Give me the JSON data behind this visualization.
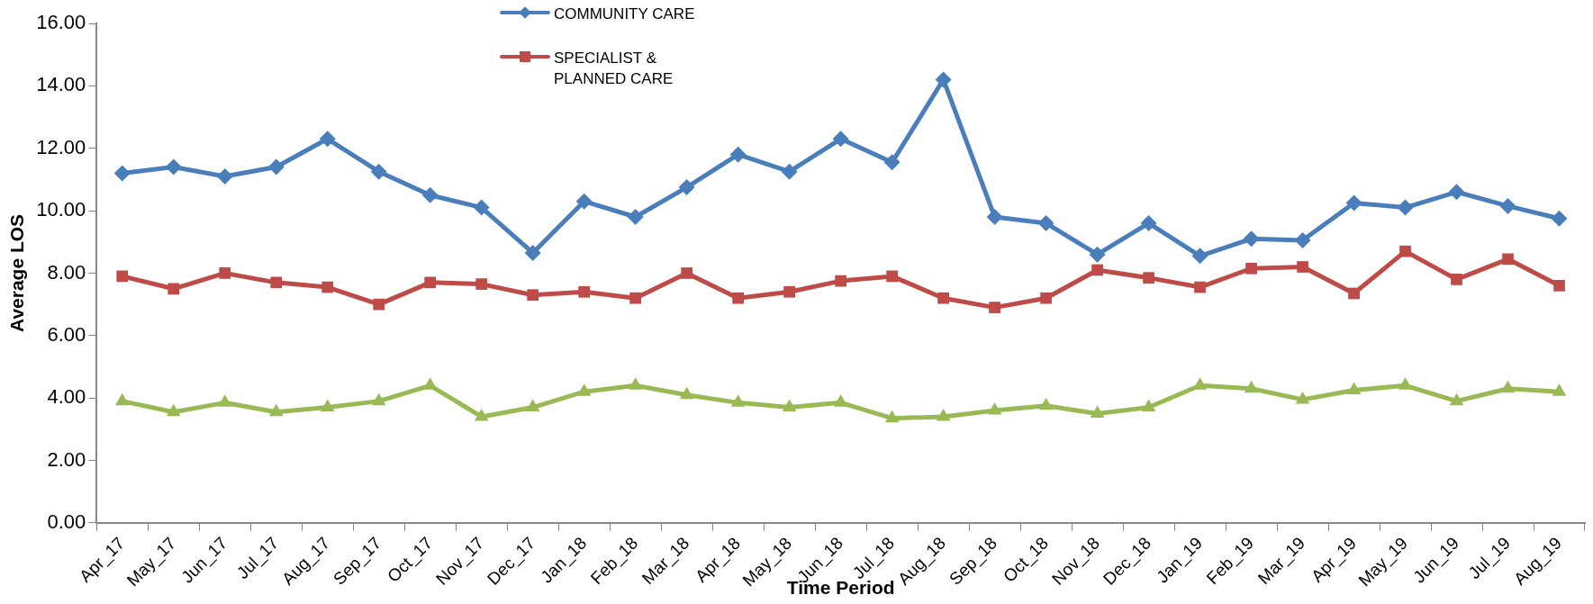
{
  "chart_data": {
    "type": "line",
    "xlabel": "Time Period",
    "ylabel": "Average LOS",
    "categories": [
      "Apr_17",
      "May_17",
      "Jun_17",
      "Jul_17",
      "Aug_17",
      "Sep_17",
      "Oct_17",
      "Nov_17",
      "Dec_17",
      "Jan_18",
      "Feb_18",
      "Mar_18",
      "Apr_18",
      "May_18",
      "Jun_18",
      "Jul_18",
      "Aug_18",
      "Sep_18",
      "Oct_18",
      "Nov_18",
      "Dec_18",
      "Jan_19",
      "Feb_19",
      "Mar_19",
      "Apr_19",
      "May_19",
      "Jun_19",
      "Jul_19",
      "Aug_19"
    ],
    "series": [
      {
        "name": "COMMUNITY CARE",
        "color": "#4a7ebb",
        "marker": "diamond",
        "values": [
          11.2,
          11.4,
          11.1,
          11.4,
          12.3,
          11.25,
          10.5,
          10.1,
          8.65,
          10.3,
          9.8,
          10.75,
          11.8,
          11.25,
          12.3,
          11.55,
          14.2,
          9.8,
          9.6,
          8.6,
          9.6,
          8.55,
          9.1,
          9.05,
          10.25,
          10.1,
          10.6,
          10.15,
          9.75
        ]
      },
      {
        "name": "SPECIALIST & PLANNED CARE",
        "color": "#be4b48",
        "marker": "square",
        "values": [
          7.9,
          7.5,
          8.0,
          7.7,
          7.55,
          7.0,
          7.7,
          7.65,
          7.3,
          7.4,
          7.2,
          8.0,
          7.2,
          7.4,
          7.75,
          7.9,
          7.2,
          6.9,
          7.2,
          8.1,
          7.85,
          7.55,
          8.15,
          8.2,
          7.35,
          8.7,
          7.8,
          8.45,
          7.6
        ]
      },
      {
        "color": "#98b954",
        "marker": "triangle",
        "values": [
          3.9,
          3.55,
          3.85,
          3.55,
          3.7,
          3.9,
          4.4,
          3.4,
          3.7,
          4.2,
          4.4,
          4.1,
          3.85,
          3.7,
          3.85,
          3.35,
          3.4,
          3.6,
          3.75,
          3.5,
          3.7,
          4.4,
          4.3,
          3.95,
          4.25,
          4.4,
          3.9,
          4.3,
          4.2
        ]
      }
    ],
    "ylim": [
      0,
      16
    ],
    "yticks": [
      {
        "value": 0,
        "label": "0.00"
      },
      {
        "value": 2,
        "label": "2.00"
      },
      {
        "value": 4,
        "label": "4.00"
      },
      {
        "value": 6,
        "label": "6.00"
      },
      {
        "value": 8,
        "label": "8.00"
      },
      {
        "value": 10,
        "label": "10.00"
      },
      {
        "value": 12,
        "label": "12.00"
      },
      {
        "value": 14,
        "label": "14.00"
      },
      {
        "value": 16,
        "label": "16.00"
      }
    ],
    "grid": false,
    "legend": "top",
    "line_style": "solid"
  }
}
